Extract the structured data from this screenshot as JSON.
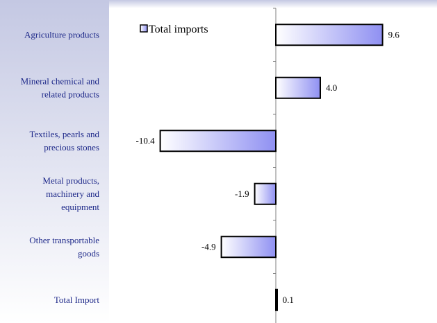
{
  "chart_data": {
    "type": "bar",
    "orientation": "horizontal",
    "categories": [
      [
        "Agriculture products"
      ],
      [
        "Mineral chemical and",
        "related products"
      ],
      [
        "Textiles, pearls and",
        "precious stones"
      ],
      [
        "Metal products,",
        "machinery and",
        "equipment"
      ],
      [
        "Other transportable",
        "goods"
      ],
      [
        "Total Import"
      ]
    ],
    "series": [
      {
        "name": "Total imports",
        "values": [
          9.6,
          4.0,
          -10.4,
          -1.9,
          -4.9,
          0.1
        ],
        "labels": [
          "9.6",
          "4.0",
          "-10.4",
          "-1.9",
          "-4.9",
          "0.1"
        ]
      }
    ],
    "xlim": [
      -15,
      15
    ],
    "grid": false,
    "legend": "top-left",
    "colors": {
      "bar_light": "#ffffff",
      "bar_dark": "#8f90f2",
      "bar_stroke": "#000000",
      "label_panel_top": "#c4c8e3",
      "label_panel_bottom": "#ffffff",
      "category_text": "#1f2a8a",
      "axis": "#7f7f7f"
    }
  }
}
